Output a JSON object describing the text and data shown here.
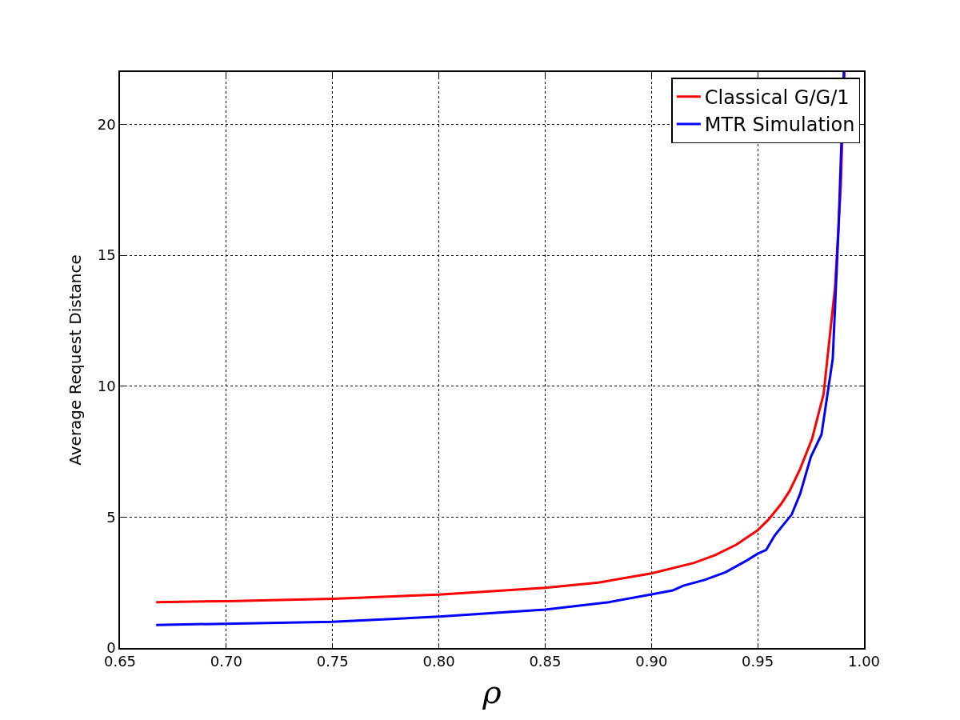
{
  "chart_data": {
    "type": "line",
    "xlabel": "ρ",
    "ylabel": "Average Request Distance",
    "xlim": [
      0.65,
      1.0
    ],
    "ylim": [
      0,
      22
    ],
    "xticks": [
      {
        "value": 0.65,
        "label": "0.65"
      },
      {
        "value": 0.7,
        "label": "0.70"
      },
      {
        "value": 0.75,
        "label": "0.75"
      },
      {
        "value": 0.8,
        "label": "0.80"
      },
      {
        "value": 0.85,
        "label": "0.85"
      },
      {
        "value": 0.9,
        "label": "0.90"
      },
      {
        "value": 0.95,
        "label": "0.95"
      },
      {
        "value": 1.0,
        "label": "1.00"
      }
    ],
    "yticks": [
      0,
      5,
      10,
      15,
      20
    ],
    "grid": true,
    "legend": "top right",
    "line_style": "solid",
    "marker": "none",
    "series": [
      {
        "name": "Classical G/G/1",
        "color": "#ff0000",
        "x": [
          0.667,
          0.7,
          0.75,
          0.8,
          0.85,
          0.875,
          0.9,
          0.92,
          0.93,
          0.94,
          0.95,
          0.955,
          0.961,
          0.965,
          0.97,
          0.9756,
          0.981,
          0.9864,
          0.989,
          0.9908
        ],
        "values": [
          1.75,
          1.79,
          1.88,
          2.04,
          2.3,
          2.5,
          2.85,
          3.25,
          3.55,
          3.95,
          4.5,
          4.9,
          5.5,
          6.0,
          6.85,
          8.0,
          9.7,
          13.8,
          17.5,
          22
        ]
      },
      {
        "name": "MTR Simulation",
        "color": "#0000ff",
        "x": [
          0.667,
          0.75,
          0.8,
          0.85,
          0.88,
          0.9,
          0.91,
          0.915,
          0.925,
          0.935,
          0.945,
          0.95,
          0.954,
          0.958,
          0.966,
          0.97,
          0.975,
          0.98,
          0.9853,
          0.988,
          0.9905
        ],
        "values": [
          0.88,
          1.0,
          1.2,
          1.47,
          1.75,
          2.05,
          2.2,
          2.38,
          2.6,
          2.9,
          3.35,
          3.6,
          3.75,
          4.3,
          5.1,
          5.9,
          7.3,
          8.15,
          11.05,
          16,
          22
        ]
      }
    ]
  }
}
